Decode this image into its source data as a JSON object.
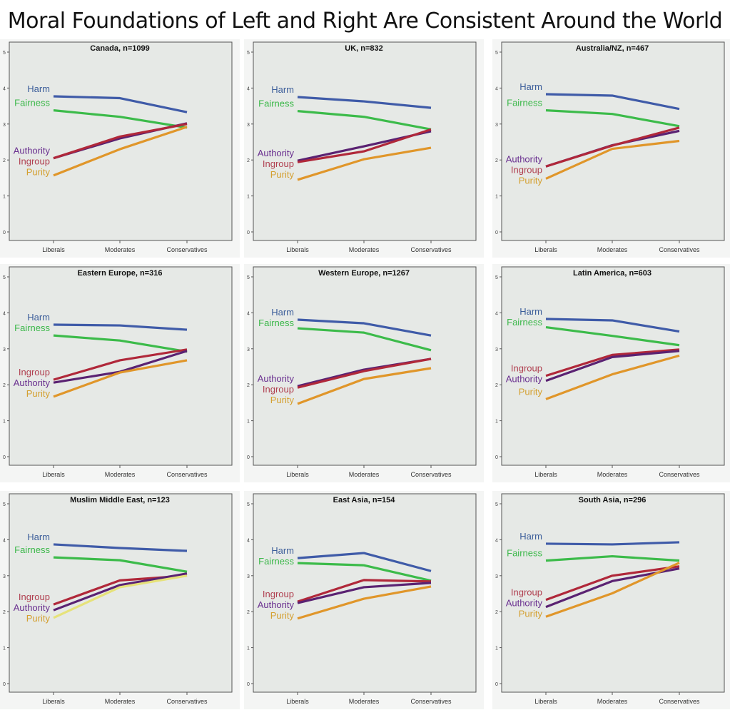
{
  "title": "Moral Foundations of Left and Right Are Consistent Around the World",
  "colors": {
    "Harm": {
      "line": "#3f5ba8",
      "label": "#3c5e9a"
    },
    "Fairness": {
      "line": "#3cbb4a",
      "label": "#3cb84a"
    },
    "Authority": {
      "line": "#5a2272",
      "label": "#6a3090"
    },
    "Ingroup": {
      "line": "#b0283a",
      "label": "#b04050"
    },
    "Purity": {
      "line": "#e0962a",
      "label": "#d4a030"
    },
    "panel_bg": "#e6e9e6"
  },
  "chart_data": [
    {
      "type": "line",
      "title": "Canada, n=1099",
      "categories": [
        "Liberals",
        "Moderates",
        "Conservatives"
      ],
      "ylim": [
        0,
        5
      ],
      "yticks": [
        "0",
        "1",
        "2",
        "3",
        "4",
        "5"
      ],
      "series": [
        {
          "name": "Harm",
          "values": [
            3.77,
            3.72,
            3.33
          ]
        },
        {
          "name": "Fairness",
          "values": [
            3.38,
            3.2,
            2.9
          ]
        },
        {
          "name": "Authority",
          "values": [
            2.05,
            2.6,
            3.02
          ]
        },
        {
          "name": "Ingroup",
          "values": [
            2.05,
            2.65,
            3.0
          ]
        },
        {
          "name": "Purity",
          "values": [
            1.57,
            2.3,
            2.92
          ]
        }
      ]
    },
    {
      "type": "line",
      "title": "UK, n=832",
      "categories": [
        "Liberals",
        "Moderates",
        "Conservatives"
      ],
      "ylim": [
        0,
        5
      ],
      "yticks": [
        "0",
        "1",
        "2",
        "3",
        "4",
        "5"
      ],
      "series": [
        {
          "name": "Harm",
          "values": [
            3.75,
            3.63,
            3.45
          ]
        },
        {
          "name": "Fairness",
          "values": [
            3.36,
            3.2,
            2.85
          ]
        },
        {
          "name": "Authority",
          "values": [
            1.98,
            2.38,
            2.8
          ]
        },
        {
          "name": "Ingroup",
          "values": [
            1.94,
            2.24,
            2.85
          ]
        },
        {
          "name": "Purity",
          "values": [
            1.45,
            2.02,
            2.34
          ]
        }
      ]
    },
    {
      "type": "line",
      "title": "Australia/NZ, n=467",
      "categories": [
        "Liberals",
        "Moderates",
        "Conservatives"
      ],
      "ylim": [
        0,
        5
      ],
      "yticks": [
        "0",
        "1",
        "2",
        "3",
        "4",
        "5"
      ],
      "series": [
        {
          "name": "Harm",
          "values": [
            3.83,
            3.79,
            3.42
          ]
        },
        {
          "name": "Fairness",
          "values": [
            3.38,
            3.28,
            2.94
          ]
        },
        {
          "name": "Authority",
          "values": [
            1.82,
            2.41,
            2.81
          ]
        },
        {
          "name": "Ingroup",
          "values": [
            1.82,
            2.4,
            2.9
          ]
        },
        {
          "name": "Purity",
          "values": [
            1.48,
            2.31,
            2.53
          ]
        }
      ]
    },
    {
      "type": "line",
      "title": "Eastern Europe, n=316",
      "categories": [
        "Liberals",
        "Moderates",
        "Conservatives"
      ],
      "ylim": [
        0,
        5
      ],
      "yticks": [
        "0",
        "1",
        "2",
        "3",
        "4",
        "5"
      ],
      "series": [
        {
          "name": "Harm",
          "values": [
            3.67,
            3.65,
            3.53
          ]
        },
        {
          "name": "Fairness",
          "values": [
            3.37,
            3.23,
            2.92
          ]
        },
        {
          "name": "Ingroup",
          "values": [
            2.14,
            2.68,
            2.98
          ]
        },
        {
          "name": "Authority",
          "values": [
            2.06,
            2.36,
            2.94
          ]
        },
        {
          "name": "Purity",
          "values": [
            1.67,
            2.34,
            2.68
          ]
        }
      ]
    },
    {
      "type": "line",
      "title": "Western Europe, n=1267",
      "categories": [
        "Liberals",
        "Moderates",
        "Conservatives"
      ],
      "ylim": [
        0,
        5
      ],
      "yticks": [
        "0",
        "1",
        "2",
        "3",
        "4",
        "5"
      ],
      "series": [
        {
          "name": "Harm",
          "values": [
            3.81,
            3.71,
            3.37
          ]
        },
        {
          "name": "Fairness",
          "values": [
            3.57,
            3.45,
            2.96
          ]
        },
        {
          "name": "Authority",
          "values": [
            1.96,
            2.42,
            2.72
          ]
        },
        {
          "name": "Ingroup",
          "values": [
            1.92,
            2.38,
            2.72
          ]
        },
        {
          "name": "Purity",
          "values": [
            1.47,
            2.16,
            2.46
          ]
        }
      ]
    },
    {
      "type": "line",
      "title": "Latin America, n=603",
      "categories": [
        "Liberals",
        "Moderates",
        "Conservatives"
      ],
      "ylim": [
        0,
        5
      ],
      "yticks": [
        "0",
        "1",
        "2",
        "3",
        "4",
        "5"
      ],
      "series": [
        {
          "name": "Harm",
          "values": [
            3.83,
            3.79,
            3.48
          ]
        },
        {
          "name": "Fairness",
          "values": [
            3.6,
            3.36,
            3.1
          ]
        },
        {
          "name": "Ingroup",
          "values": [
            2.25,
            2.83,
            2.98
          ]
        },
        {
          "name": "Authority",
          "values": [
            2.11,
            2.77,
            2.94
          ]
        },
        {
          "name": "Purity",
          "values": [
            1.6,
            2.29,
            2.81
          ]
        }
      ]
    },
    {
      "type": "line",
      "title": "Muslim Middle East, n=123",
      "categories": [
        "Liberals",
        "Moderates",
        "Conservatives"
      ],
      "ylim": [
        0,
        5
      ],
      "yticks": [
        "0",
        "1",
        "2",
        "3",
        "4",
        "5"
      ],
      "series": [
        {
          "name": "Harm",
          "values": [
            3.87,
            3.77,
            3.69
          ]
        },
        {
          "name": "Fairness",
          "values": [
            3.51,
            3.43,
            3.11
          ]
        },
        {
          "name": "Ingroup",
          "values": [
            2.2,
            2.87,
            3.0
          ]
        },
        {
          "name": "Authority",
          "values": [
            2.04,
            2.74,
            3.06
          ]
        },
        {
          "name": "Purity",
          "values": [
            1.83,
            2.68,
            3.0
          ]
        }
      ]
    },
    {
      "type": "line",
      "title": "East Asia, n=154",
      "categories": [
        "Liberals",
        "Moderates",
        "Conservatives"
      ],
      "ylim": [
        0,
        5
      ],
      "yticks": [
        "0",
        "1",
        "2",
        "3",
        "4",
        "5"
      ],
      "series": [
        {
          "name": "Harm",
          "values": [
            3.49,
            3.63,
            3.13
          ]
        },
        {
          "name": "Fairness",
          "values": [
            3.35,
            3.29,
            2.86
          ]
        },
        {
          "name": "Ingroup",
          "values": [
            2.28,
            2.88,
            2.84
          ]
        },
        {
          "name": "Authority",
          "values": [
            2.24,
            2.68,
            2.8
          ]
        },
        {
          "name": "Purity",
          "values": [
            1.81,
            2.36,
            2.7
          ]
        }
      ]
    },
    {
      "type": "line",
      "title": "South Asia, n=296",
      "categories": [
        "Liberals",
        "Moderates",
        "Conservatives"
      ],
      "ylim": [
        0,
        5
      ],
      "yticks": [
        "0",
        "1",
        "2",
        "3",
        "4",
        "5"
      ],
      "series": [
        {
          "name": "Harm",
          "values": [
            3.89,
            3.87,
            3.93
          ]
        },
        {
          "name": "Fairness",
          "values": [
            3.42,
            3.54,
            3.42
          ]
        },
        {
          "name": "Ingroup",
          "values": [
            2.33,
            3.0,
            3.26
          ]
        },
        {
          "name": "Authority",
          "values": [
            2.13,
            2.85,
            3.2
          ]
        },
        {
          "name": "Purity",
          "values": [
            1.86,
            2.51,
            3.36
          ]
        }
      ]
    }
  ]
}
